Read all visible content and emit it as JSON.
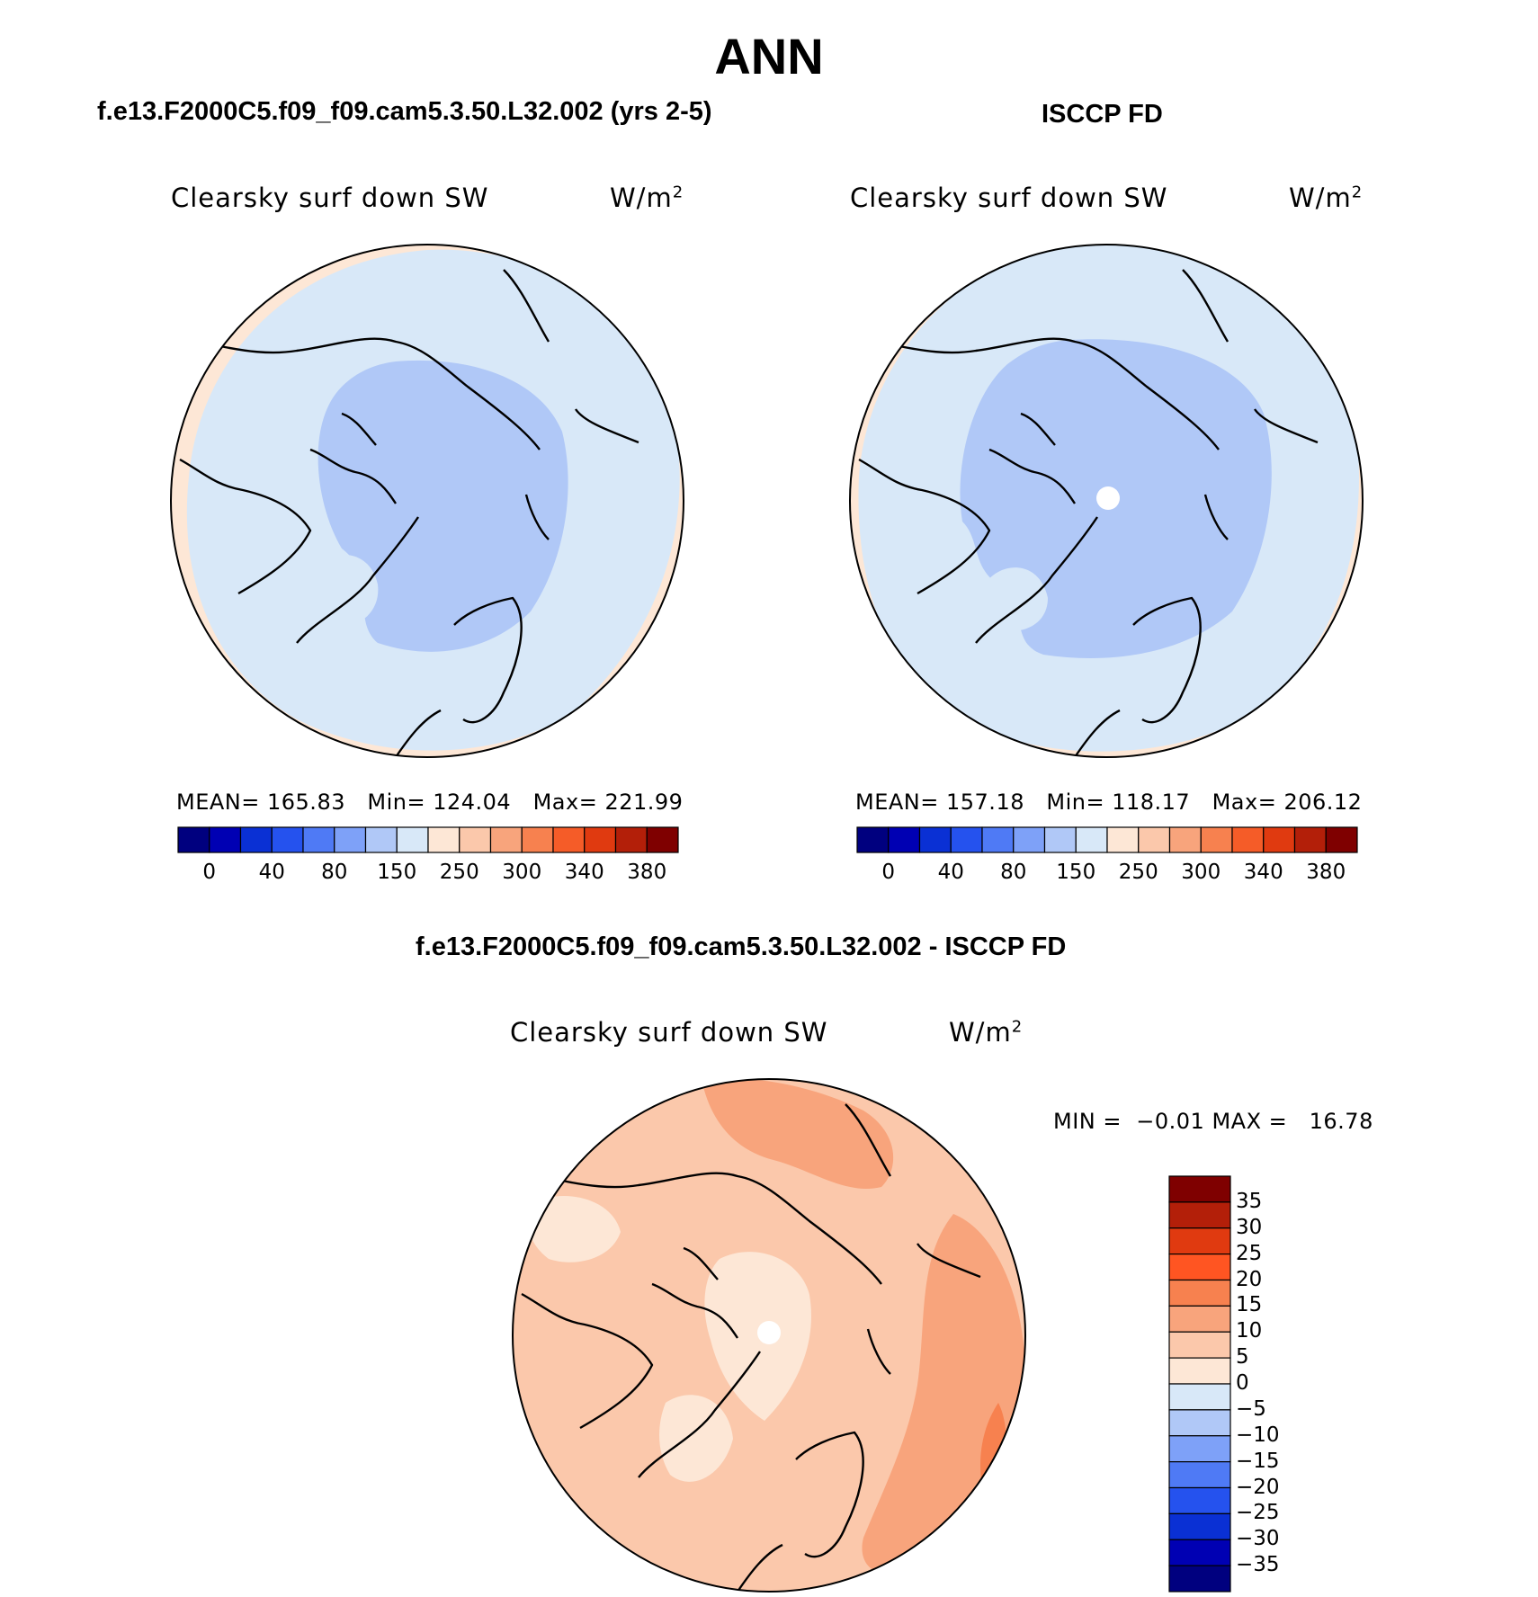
{
  "title": "ANN",
  "panels": [
    {
      "id": "model",
      "heading": "f.e13.F2000C5.f09_f09.cam5.3.50.L32.002 (yrs 2-5)",
      "variable": "Clearsky surf down SW",
      "units_base": "W/m",
      "units_exp": "2",
      "stats": {
        "mean_label": "MEAN=",
        "mean": "165.83",
        "min_label": "Min=",
        "min": "124.04",
        "max_label": "Max=",
        "max": "221.99"
      }
    },
    {
      "id": "obs",
      "heading": "ISCCP FD",
      "variable": "Clearsky surf down SW",
      "units_base": "W/m",
      "units_exp": "2",
      "stats": {
        "mean_label": "MEAN=",
        "mean": "157.18",
        "min_label": "Min=",
        "min": "118.17",
        "max_label": "Max=",
        "max": "206.12"
      }
    }
  ],
  "abs_colorbar": {
    "colors": [
      "#00007f",
      "#0000b3",
      "#0a30d4",
      "#2552ee",
      "#4f7af5",
      "#7ea1f8",
      "#b0c8f7",
      "#d8e8f8",
      "#fde7d6",
      "#fbc8ab",
      "#f8a47c",
      "#f7814f",
      "#f55c28",
      "#e03a10",
      "#b31f09",
      "#7f0000"
    ],
    "ticks": [
      "0",
      "40",
      "80",
      "150",
      "250",
      "300",
      "340",
      "380"
    ]
  },
  "diff_panel": {
    "heading": "f.e13.F2000C5.f09_f09.cam5.3.50.L32.002 - ISCCP FD",
    "variable": "Clearsky surf down SW",
    "units_base": "W/m",
    "units_exp": "2",
    "min_label": "MIN =",
    "min": "−0.01",
    "max_label": "MAX =",
    "max": "16.78"
  },
  "diff_colorbar": {
    "colors": [
      "#7f0000",
      "#b31f09",
      "#e03a10",
      "#ff5522",
      "#f7814f",
      "#f8a47c",
      "#fbc8ab",
      "#fde7d6",
      "#d8e8f8",
      "#b0c8f7",
      "#7ea1f8",
      "#4f7af5",
      "#2552ee",
      "#0a30d4",
      "#0000b3",
      "#00007f"
    ],
    "ticks": [
      "35",
      "30",
      "25",
      "20",
      "15",
      "10",
      "5",
      "0",
      "−5",
      "−10",
      "−15",
      "−20",
      "−25",
      "−30",
      "−35"
    ]
  },
  "map_colors": {
    "abs_outer": "#d8e8f8",
    "abs_inner": "#b0c8f7",
    "abs_edge": "#fde7d6",
    "diff_base": "#fbc8ab",
    "diff_high": "#f8a47c",
    "diff_low": "#fde7d6",
    "diff_peak": "#f7814f",
    "missing": "#ffffff"
  }
}
